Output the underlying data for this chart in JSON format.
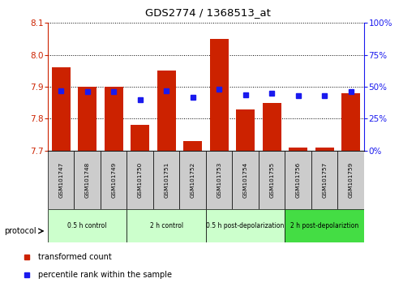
{
  "title": "GDS2774 / 1368513_at",
  "samples": [
    "GSM101747",
    "GSM101748",
    "GSM101749",
    "GSM101750",
    "GSM101751",
    "GSM101752",
    "GSM101753",
    "GSM101754",
    "GSM101755",
    "GSM101756",
    "GSM101757",
    "GSM101759"
  ],
  "bar_bottom": 7.7,
  "bar_tops": [
    7.96,
    7.9,
    7.9,
    7.78,
    7.95,
    7.73,
    8.05,
    7.83,
    7.85,
    7.71,
    7.71,
    7.88
  ],
  "percentile_ranks": [
    47,
    46,
    46,
    40,
    47,
    42,
    48,
    44,
    45,
    43,
    43,
    46
  ],
  "ylim_left": [
    7.7,
    8.1
  ],
  "ylim_right": [
    0,
    100
  ],
  "yticks_left": [
    7.7,
    7.8,
    7.9,
    8.0,
    8.1
  ],
  "yticks_right": [
    0,
    25,
    50,
    75,
    100
  ],
  "ytick_labels_right": [
    "0%",
    "25%",
    "50%",
    "75%",
    "100%"
  ],
  "bar_color": "#cc2200",
  "blue_color": "#1a1aee",
  "groups": [
    {
      "label": "0.5 h control",
      "start": 0,
      "end": 3
    },
    {
      "label": "2 h control",
      "start": 3,
      "end": 6
    },
    {
      "label": "0.5 h post-depolarization",
      "start": 6,
      "end": 9
    },
    {
      "label": "2 h post-depolariztion",
      "start": 9,
      "end": 12
    }
  ],
  "group_colors": [
    "#ccffcc",
    "#ccffcc",
    "#ccffcc",
    "#44dd44"
  ],
  "sample_bg_color": "#cccccc",
  "legend_items": [
    {
      "label": "transformed count",
      "color": "#cc2200"
    },
    {
      "label": "percentile rank within the sample",
      "color": "#1a1aee"
    }
  ],
  "protocol_label": "protocol",
  "bar_width": 0.7
}
